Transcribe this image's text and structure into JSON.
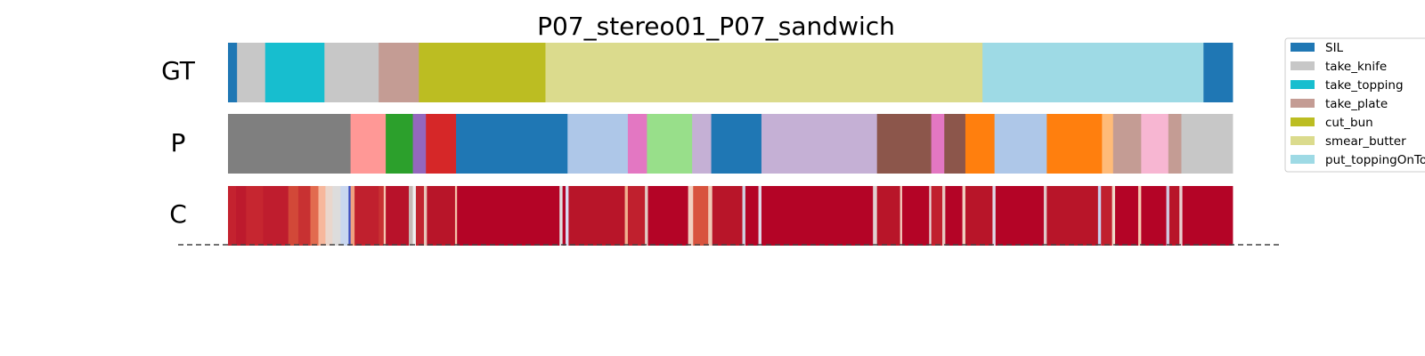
{
  "chart_data": {
    "type": "segmentation",
    "title": "P07_stereo01_P07_sandwich",
    "rows": [
      "GT",
      "P",
      "C"
    ],
    "x_range": [
      0,
      1000
    ],
    "legend_position": "top-right",
    "legend": [
      {
        "label": "SIL",
        "color": "#1f77b4"
      },
      {
        "label": "take_knife",
        "color": "#c7c7c7"
      },
      {
        "label": "take_topping",
        "color": "#17becf"
      },
      {
        "label": "take_plate",
        "color": "#c49c94"
      },
      {
        "label": "cut_bun",
        "color": "#bcbd22"
      },
      {
        "label": "smear_butter",
        "color": "#dbdb8d"
      },
      {
        "label": "put_toppingOnTop",
        "color": "#9edae5"
      }
    ],
    "gt_segments": [
      {
        "start": 0,
        "end": 9,
        "color": "#1f77b4"
      },
      {
        "start": 9,
        "end": 37,
        "color": "#c7c7c7"
      },
      {
        "start": 37,
        "end": 96,
        "color": "#17becf"
      },
      {
        "start": 96,
        "end": 150,
        "color": "#c7c7c7"
      },
      {
        "start": 150,
        "end": 190,
        "color": "#c49c94"
      },
      {
        "start": 190,
        "end": 316,
        "color": "#bcbd22"
      },
      {
        "start": 316,
        "end": 751,
        "color": "#dbdb8d"
      },
      {
        "start": 751,
        "end": 971,
        "color": "#9edae5"
      },
      {
        "start": 971,
        "end": 1000,
        "color": "#1f77b4"
      }
    ],
    "p_segments": [
      {
        "start": 0,
        "end": 122,
        "color": "#7f7f7f"
      },
      {
        "start": 122,
        "end": 157,
        "color": "#ff9896"
      },
      {
        "start": 157,
        "end": 184,
        "color": "#2ca02c"
      },
      {
        "start": 184,
        "end": 197,
        "color": "#9467bd"
      },
      {
        "start": 197,
        "end": 227,
        "color": "#d62728"
      },
      {
        "start": 227,
        "end": 338,
        "color": "#1f77b4"
      },
      {
        "start": 338,
        "end": 398,
        "color": "#aec7e8"
      },
      {
        "start": 398,
        "end": 417,
        "color": "#e377c2"
      },
      {
        "start": 417,
        "end": 462,
        "color": "#98df8a"
      },
      {
        "start": 462,
        "end": 481,
        "color": "#c5b0d5"
      },
      {
        "start": 481,
        "end": 531,
        "color": "#1f77b4"
      },
      {
        "start": 531,
        "end": 646,
        "color": "#c5b0d5"
      },
      {
        "start": 646,
        "end": 700,
        "color": "#8c564b"
      },
      {
        "start": 700,
        "end": 713,
        "color": "#e377c2"
      },
      {
        "start": 713,
        "end": 734,
        "color": "#8c564b"
      },
      {
        "start": 734,
        "end": 763,
        "color": "#ff7f0e"
      },
      {
        "start": 763,
        "end": 815,
        "color": "#aec7e8"
      },
      {
        "start": 815,
        "end": 870,
        "color": "#ff7f0e"
      },
      {
        "start": 870,
        "end": 881,
        "color": "#ffbb78"
      },
      {
        "start": 881,
        "end": 909,
        "color": "#c49c94"
      },
      {
        "start": 909,
        "end": 936,
        "color": "#f7b6d2"
      },
      {
        "start": 936,
        "end": 949,
        "color": "#c49c94"
      },
      {
        "start": 949,
        "end": 1000,
        "color": "#c7c7c7"
      }
    ],
    "c_segments": [
      {
        "start": 0,
        "end": 8,
        "color": "#c4222f"
      },
      {
        "start": 8,
        "end": 18,
        "color": "#bd1a2d"
      },
      {
        "start": 18,
        "end": 35,
        "color": "#c62630"
      },
      {
        "start": 35,
        "end": 60,
        "color": "#bf1d2e"
      },
      {
        "start": 60,
        "end": 70,
        "color": "#d24838"
      },
      {
        "start": 70,
        "end": 82,
        "color": "#c83132"
      },
      {
        "start": 82,
        "end": 90,
        "color": "#e26b4f"
      },
      {
        "start": 90,
        "end": 97,
        "color": "#f7b79c"
      },
      {
        "start": 97,
        "end": 104,
        "color": "#ead6cc"
      },
      {
        "start": 104,
        "end": 112,
        "color": "#dddcdc"
      },
      {
        "start": 112,
        "end": 120,
        "color": "#c9d7ef"
      },
      {
        "start": 120,
        "end": 122,
        "color": "#3b4cc0"
      },
      {
        "start": 122,
        "end": 126,
        "color": "#f0a080"
      },
      {
        "start": 126,
        "end": 150,
        "color": "#c0202e"
      },
      {
        "start": 150,
        "end": 155,
        "color": "#c83132"
      },
      {
        "start": 155,
        "end": 157,
        "color": "#f4c6b0"
      },
      {
        "start": 157,
        "end": 180,
        "color": "#b8122a"
      },
      {
        "start": 180,
        "end": 184,
        "color": "#c7b9b5"
      },
      {
        "start": 184,
        "end": 187,
        "color": "#f0f0f0"
      },
      {
        "start": 187,
        "end": 195,
        "color": "#c2242f"
      },
      {
        "start": 195,
        "end": 198,
        "color": "#e8c5b8"
      },
      {
        "start": 198,
        "end": 226,
        "color": "#b81529"
      },
      {
        "start": 226,
        "end": 228,
        "color": "#f3c1a8"
      },
      {
        "start": 228,
        "end": 330,
        "color": "#b40426"
      },
      {
        "start": 330,
        "end": 333,
        "color": "#e0e0e0"
      },
      {
        "start": 333,
        "end": 336,
        "color": "#b40426"
      },
      {
        "start": 336,
        "end": 339,
        "color": "#d9d9f0"
      },
      {
        "start": 339,
        "end": 395,
        "color": "#b81529"
      },
      {
        "start": 395,
        "end": 398,
        "color": "#f0b090"
      },
      {
        "start": 398,
        "end": 415,
        "color": "#c0202e"
      },
      {
        "start": 415,
        "end": 418,
        "color": "#e2ccc4"
      },
      {
        "start": 418,
        "end": 458,
        "color": "#b40426"
      },
      {
        "start": 458,
        "end": 463,
        "color": "#f2d0c0"
      },
      {
        "start": 463,
        "end": 478,
        "color": "#d8533e"
      },
      {
        "start": 478,
        "end": 482,
        "color": "#f0c8b4"
      },
      {
        "start": 482,
        "end": 512,
        "color": "#b81529"
      },
      {
        "start": 512,
        "end": 515,
        "color": "#d0d0e0"
      },
      {
        "start": 515,
        "end": 528,
        "color": "#b40426"
      },
      {
        "start": 528,
        "end": 531,
        "color": "#e0d8e8"
      },
      {
        "start": 531,
        "end": 642,
        "color": "#b40426"
      },
      {
        "start": 642,
        "end": 646,
        "color": "#e0d0d0"
      },
      {
        "start": 646,
        "end": 669,
        "color": "#b81529"
      },
      {
        "start": 669,
        "end": 671,
        "color": "#f5d0c0"
      },
      {
        "start": 671,
        "end": 698,
        "color": "#b40426"
      },
      {
        "start": 698,
        "end": 700,
        "color": "#e8d8d8"
      },
      {
        "start": 700,
        "end": 711,
        "color": "#c0202e"
      },
      {
        "start": 711,
        "end": 714,
        "color": "#e8c8c0"
      },
      {
        "start": 714,
        "end": 731,
        "color": "#b40426"
      },
      {
        "start": 731,
        "end": 734,
        "color": "#f0d0c0"
      },
      {
        "start": 734,
        "end": 761,
        "color": "#b81529"
      },
      {
        "start": 761,
        "end": 764,
        "color": "#e0d8e8"
      },
      {
        "start": 764,
        "end": 812,
        "color": "#b40426"
      },
      {
        "start": 812,
        "end": 815,
        "color": "#e0c8c8"
      },
      {
        "start": 815,
        "end": 866,
        "color": "#b81529"
      },
      {
        "start": 866,
        "end": 869,
        "color": "#c8d0f0"
      },
      {
        "start": 869,
        "end": 880,
        "color": "#c0202e"
      },
      {
        "start": 880,
        "end": 883,
        "color": "#f0d8c8"
      },
      {
        "start": 883,
        "end": 906,
        "color": "#b40426"
      },
      {
        "start": 906,
        "end": 909,
        "color": "#f4c8b0"
      },
      {
        "start": 909,
        "end": 934,
        "color": "#b40426"
      },
      {
        "start": 934,
        "end": 937,
        "color": "#d0c8e0"
      },
      {
        "start": 937,
        "end": 947,
        "color": "#b81529"
      },
      {
        "start": 947,
        "end": 950,
        "color": "#e8d0d0"
      },
      {
        "start": 950,
        "end": 1000,
        "color": "#b40426"
      }
    ]
  }
}
